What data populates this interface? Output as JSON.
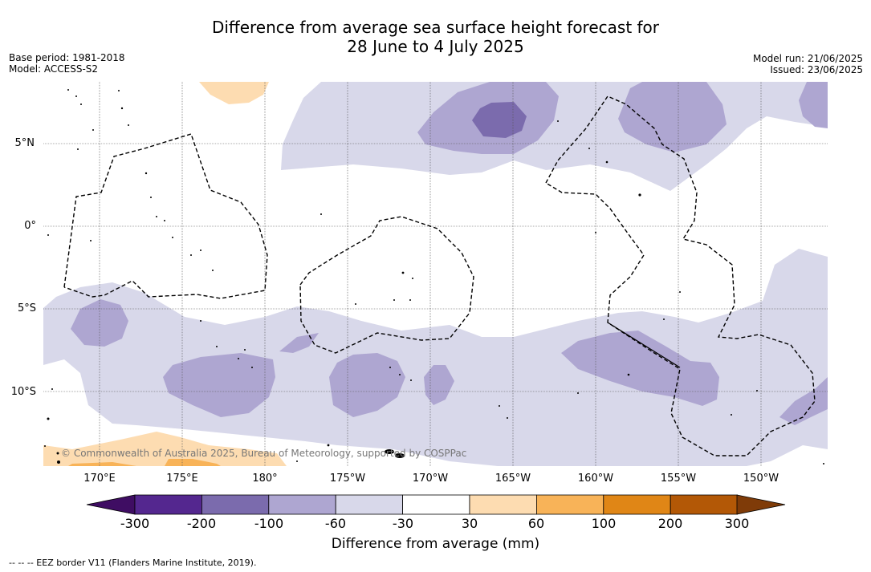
{
  "title_line1": "Difference from average sea surface height forecast for",
  "title_line2": "28 June to 4 July 2025",
  "base_period": "Base period: 1981-2018",
  "model": "Model: ACCESS-S2",
  "model_run": "Model run: 21/06/2025",
  "issued": "Issued: 23/06/2025",
  "lat_labels": [
    "5°N",
    "0°",
    "5°S",
    "10°S"
  ],
  "lon_labels": [
    "170°E",
    "175°E",
    "180°",
    "175°W",
    "170°W",
    "165°W",
    "160°W",
    "155°W",
    "150°W"
  ],
  "copyright": "© Commonwealth of Australia 2025, Bureau of Meteorology, supported by COSPPac",
  "colorbar": {
    "labels": [
      "-300",
      "-200",
      "-100",
      "-60",
      "-30",
      "30",
      "60",
      "100",
      "200",
      "300"
    ],
    "colors": [
      "#3f0d63",
      "#54278f",
      "#7b6bad",
      "#aea6d1",
      "#d8d8ea",
      "#ffffff",
      "#fddcb1",
      "#f8b358",
      "#e08616",
      "#b35806",
      "#7f3b08"
    ],
    "title": "Difference from average (mm)"
  },
  "footnote": "--  --  -- EEZ border V11 (Flanders Marine Institute, 2019)."
}
